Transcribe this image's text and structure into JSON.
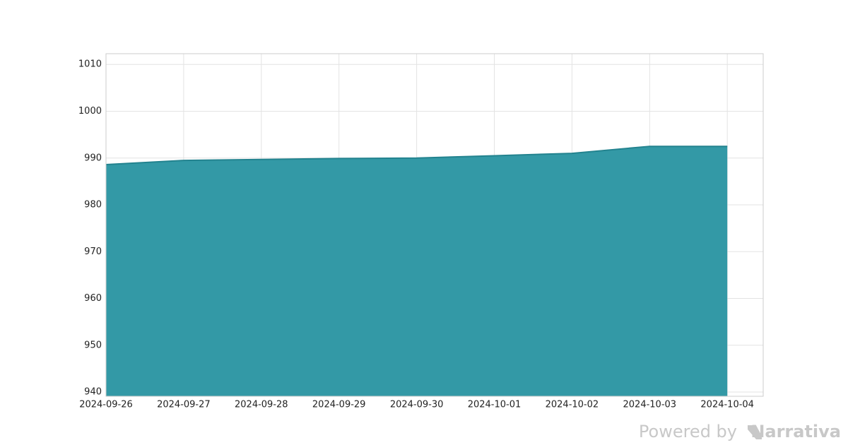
{
  "chart_data": {
    "type": "area",
    "x": [
      "2024-09-26",
      "2024-09-27",
      "2024-09-28",
      "2024-09-29",
      "2024-09-30",
      "2024-10-01",
      "2024-10-02",
      "2024-10-03",
      "2024-10-04"
    ],
    "series": [
      {
        "color": "#3399a6",
        "values": [
          988.6,
          989.5,
          989.7,
          989.9,
          990.0,
          990.5,
          991.0,
          992.5,
          992.5
        ]
      }
    ],
    "ylim": [
      939.1,
      1012.3
    ],
    "yticks": [
      940,
      950,
      960,
      970,
      980,
      990,
      1000,
      1010
    ],
    "grid": true
  },
  "footer": {
    "powered": "Powered by",
    "brand": "Narrativa"
  }
}
